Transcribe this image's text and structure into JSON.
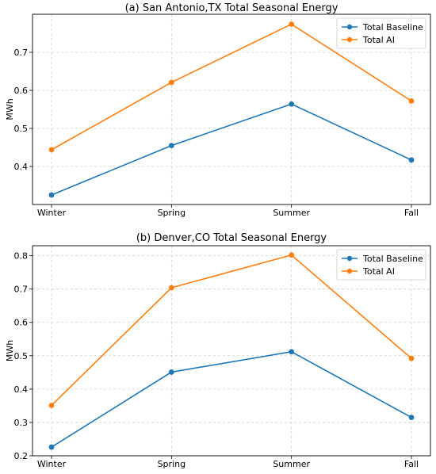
{
  "chart_data": [
    {
      "type": "line",
      "title": "(a) San Antonio,TX Total Seasonal Energy",
      "xlabel": "",
      "ylabel": "MWh",
      "categories": [
        "Winter",
        "Spring",
        "Summer",
        "Fall"
      ],
      "series": [
        {
          "name": "Total Baseline",
          "values": [
            0.325,
            0.455,
            0.564,
            0.417
          ],
          "color": "#1f77b4"
        },
        {
          "name": "Total AI",
          "values": [
            0.444,
            0.621,
            0.774,
            0.572
          ],
          "color": "#ff7f0e"
        }
      ],
      "ylim": [
        0.3,
        0.8
      ],
      "yticks": [
        "0.4",
        "0.5",
        "0.6",
        "0.7"
      ],
      "ytick_values": [
        0.4,
        0.5,
        0.6,
        0.7
      ],
      "grid": true,
      "legend_position": "top-right"
    },
    {
      "type": "line",
      "title": "(b) Denver,CO Total Seasonal Energy",
      "xlabel": "",
      "ylabel": "MWh",
      "categories": [
        "Winter",
        "Spring",
        "Summer",
        "Fall"
      ],
      "series": [
        {
          "name": "Total Baseline",
          "values": [
            0.226,
            0.451,
            0.512,
            0.315
          ],
          "color": "#1f77b4"
        },
        {
          "name": "Total AI",
          "values": [
            0.351,
            0.704,
            0.802,
            0.492
          ],
          "color": "#ff7f0e"
        }
      ],
      "ylim": [
        0.2,
        0.83
      ],
      "yticks": [
        "0.2",
        "0.3",
        "0.4",
        "0.5",
        "0.6",
        "0.7",
        "0.8"
      ],
      "ytick_values": [
        0.2,
        0.3,
        0.4,
        0.5,
        0.6,
        0.7,
        0.8
      ],
      "grid": true,
      "legend_position": "top-right"
    }
  ]
}
